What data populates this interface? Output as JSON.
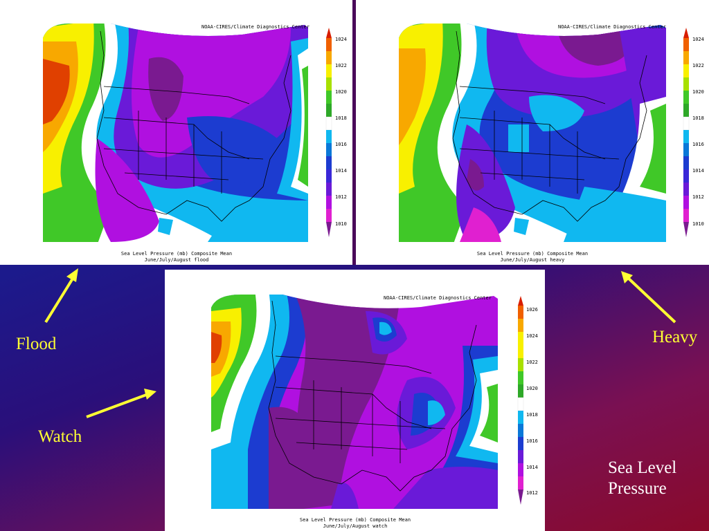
{
  "maps": [
    {
      "id": "flood",
      "source_credit": "NOAA-CIRES/Climate Diagnostics Center",
      "caption_line1": "Sea Level Pressure (mb) Composite Mean",
      "caption_line2": "June/July/August flood",
      "colorbar_labels": [
        "1024",
        "1022",
        "1020",
        "1018",
        "1016",
        "1014",
        "1012",
        "1010"
      ]
    },
    {
      "id": "heavy",
      "source_credit": "NOAA-CIRES/Climate Diagnostics Center",
      "caption_line1": "Sea Level Pressure (mb) Composite Mean",
      "caption_line2": "June/July/August heavy",
      "colorbar_labels": [
        "1024",
        "1022",
        "1020",
        "1018",
        "1016",
        "1014",
        "1012",
        "1010"
      ]
    },
    {
      "id": "watch",
      "source_credit": "NOAA-CIRES/Climate Diagnostics Center",
      "caption_line1": "Sea Level Pressure (mb) Composite Mean",
      "caption_line2": "June/July/August watch",
      "colorbar_labels": [
        "1026",
        "1024",
        "1022",
        "1020",
        "1018",
        "1016",
        "1014",
        "1012"
      ]
    }
  ],
  "labels": {
    "flood": "Flood",
    "heavy": "Heavy",
    "watch": "Watch",
    "sea_level_line1": "Sea Level",
    "sea_level_line2": "Pressure"
  },
  "colorbar_colors": [
    "#d81e00",
    "#f06000",
    "#f8a800",
    "#f8f000",
    "#a8e000",
    "#40c828",
    "#ffffff",
    "#10b8f0",
    "#0a78d8",
    "#1c3cd0",
    "#6a1ad8",
    "#b010e0",
    "#e020d0",
    "#7a1a90"
  ],
  "arrow_color": "#ffff33"
}
